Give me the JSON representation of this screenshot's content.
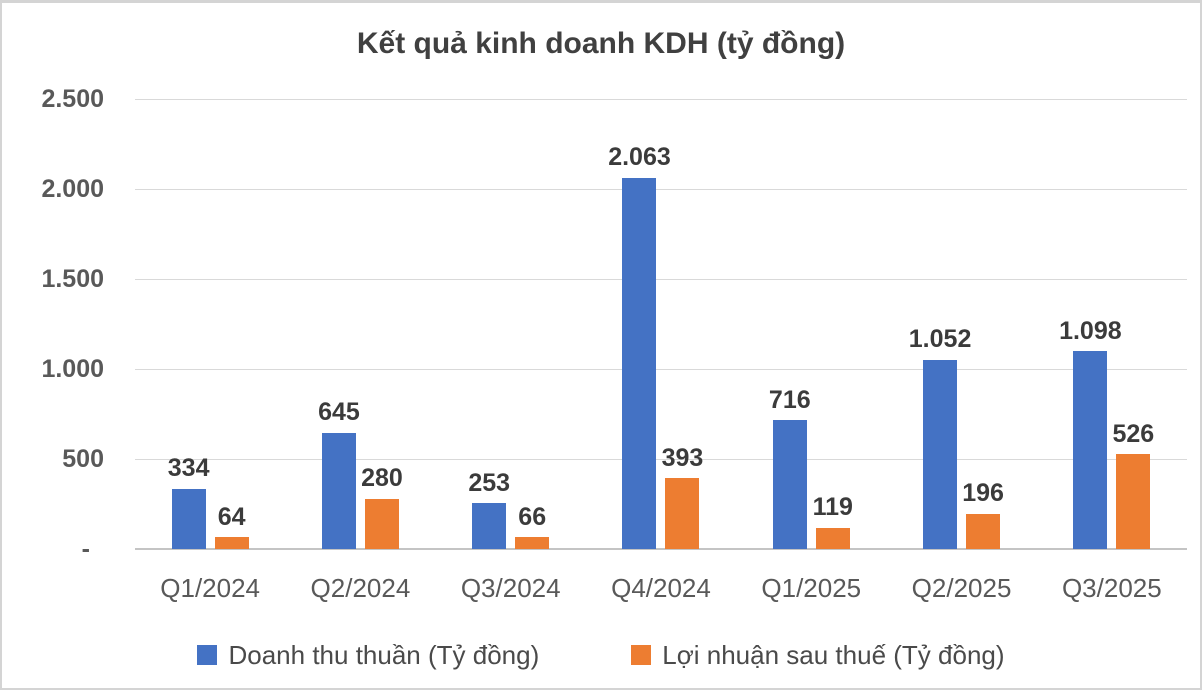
{
  "chart_data": {
    "type": "bar",
    "title": "Kết quả kinh doanh KDH (tỷ đồng)",
    "categories": [
      "Q1/2024",
      "Q2/2024",
      "Q3/2024",
      "Q4/2024",
      "Q1/2025",
      "Q2/2025",
      "Q3/2025"
    ],
    "series": [
      {
        "name": "Doanh thu thuần (Tỷ đồng)",
        "color": "#4472C4",
        "values": [
          334,
          645,
          253,
          2063,
          716,
          1052,
          1098
        ],
        "value_labels": [
          "334",
          "645",
          "253",
          "2.063",
          "716",
          "1.052",
          "1.098"
        ]
      },
      {
        "name": "Lợi nhuận sau thuế (Tỷ đồng)",
        "color": "#ED7D31",
        "values": [
          64,
          280,
          66,
          393,
          119,
          196,
          526
        ],
        "value_labels": [
          "64",
          "280",
          "66",
          "393",
          "119",
          "196",
          "526"
        ]
      }
    ],
    "xlabel": "",
    "ylabel": "",
    "ylim": [
      0,
      2500
    ],
    "ytick_interval": 500,
    "yticks": [
      {
        "value": 0,
        "label": "-"
      },
      {
        "value": 500,
        "label": "500"
      },
      {
        "value": 1000,
        "label": "1.000"
      },
      {
        "value": 1500,
        "label": "1.500"
      },
      {
        "value": 2000,
        "label": "2.000"
      },
      {
        "value": 2500,
        "label": "2.500"
      }
    ],
    "grid": true,
    "legend_position": "bottom"
  },
  "colors": {
    "background": "#FFFFFF",
    "frame_border": "#D4D4D4",
    "gridline": "#D9D9D9",
    "axis_line": "#C4C4C4",
    "title_text": "#404040",
    "data_label_text": "#3B3B3B",
    "ytick_text": "#595959",
    "category_text": "#595959",
    "legend_text": "#4A4A4A"
  }
}
